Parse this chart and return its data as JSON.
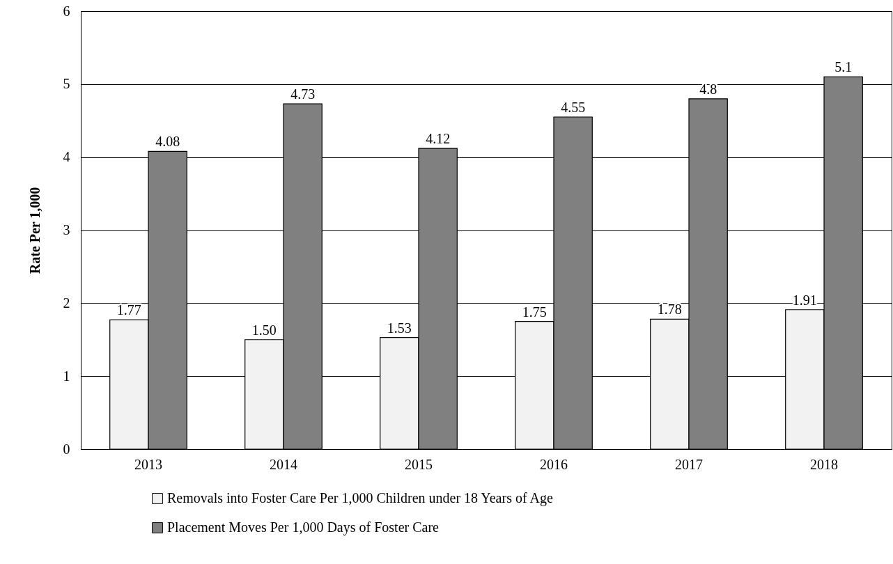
{
  "chart_data": {
    "type": "bar",
    "ylabel": "Rate Per 1,000",
    "categories": [
      "2013",
      "2014",
      "2015",
      "2016",
      "2017",
      "2018"
    ],
    "series": [
      {
        "name": "Removals into Foster Care Per 1,000 Children under 18 Years of Age",
        "color": "#f2f2f2",
        "values": [
          1.77,
          1.5,
          1.53,
          1.75,
          1.78,
          1.91
        ],
        "value_labels": [
          "1.77",
          "1.50",
          "1.53",
          "1.75",
          "1.78",
          "1.91"
        ]
      },
      {
        "name": "Placement Moves Per 1,000 Days of Foster Care",
        "color": "#808080",
        "values": [
          4.08,
          4.73,
          4.12,
          4.55,
          4.8,
          5.1
        ],
        "value_labels": [
          "4.08",
          "4.73",
          "4.12",
          "4.55",
          "4.8",
          "5.1"
        ]
      }
    ],
    "ylim": [
      0,
      6
    ],
    "yticks": [
      0,
      1,
      2,
      3,
      4,
      5,
      6
    ],
    "grid": "y",
    "legend": "bottom"
  }
}
